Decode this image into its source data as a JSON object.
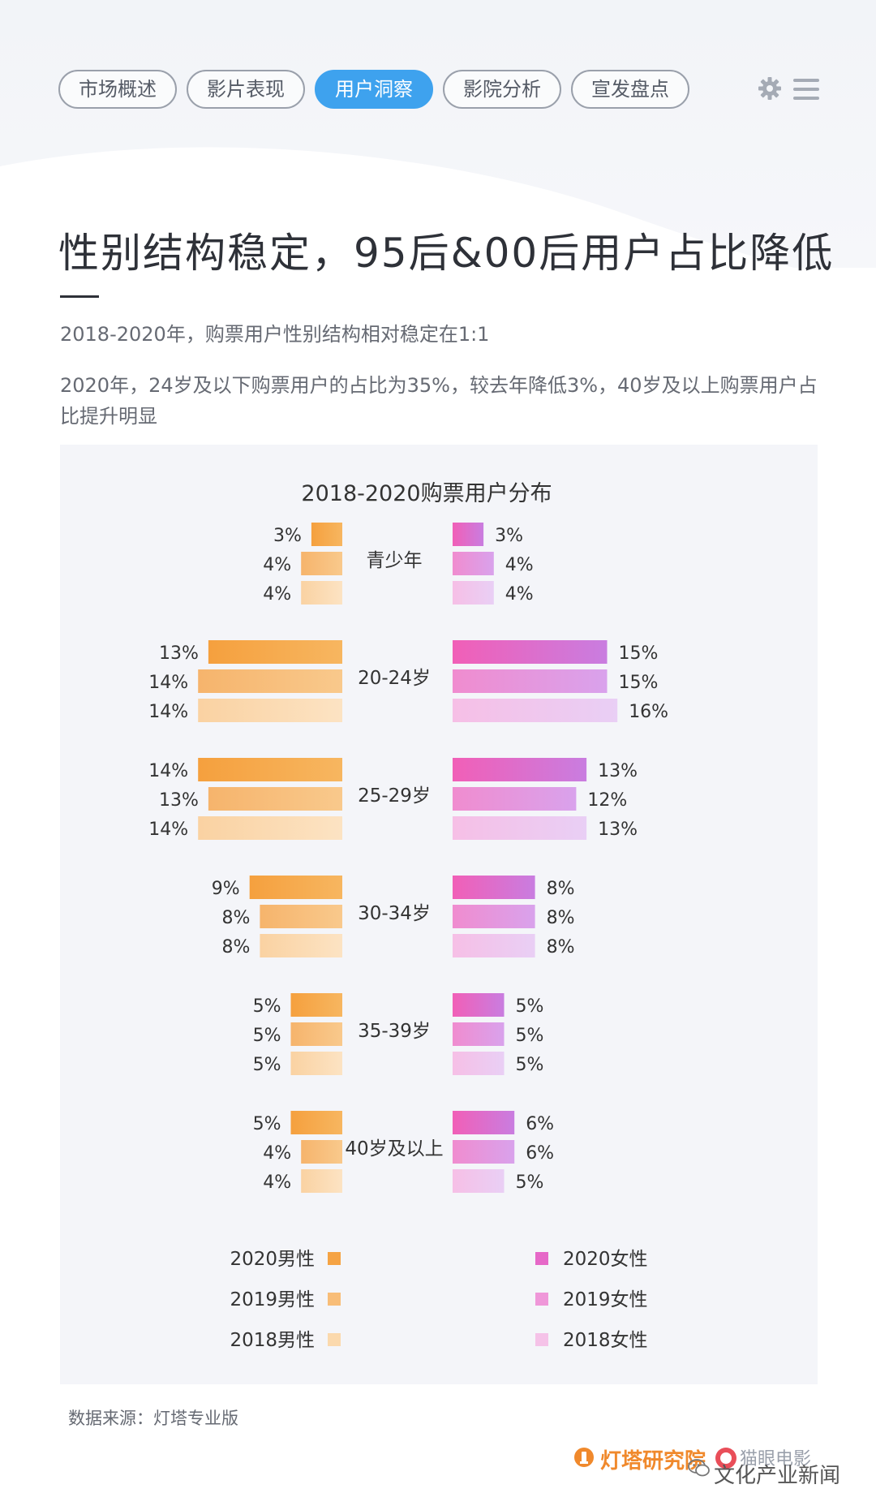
{
  "nav": {
    "tabs": [
      {
        "label": "市场概述",
        "active": false
      },
      {
        "label": "影片表现",
        "active": false
      },
      {
        "label": "用户洞察",
        "active": true
      },
      {
        "label": "影院分析",
        "active": false
      },
      {
        "label": "宣发盘点",
        "active": false
      }
    ],
    "icons": [
      "gear-icon",
      "menu-icon"
    ]
  },
  "headline": "性别结构稳定，95后&00后用户占比降低",
  "paragraphs": [
    "2018-2020年，购票用户性别结构相对稳定在1:1",
    "2020年，24岁及以下购票用户的占比为35%，较去年降低3%，40岁及以上购票用户占比提升明显"
  ],
  "chart_data": {
    "type": "bar",
    "title": "2018-2020购票用户分布",
    "orientation": "horizontal-butterfly",
    "categories": [
      "青少年",
      "20-24岁",
      "25-29岁",
      "30-34岁",
      "35-39岁",
      "40岁及以上"
    ],
    "unit": "%",
    "series": [
      {
        "name": "2020男性",
        "side": "left",
        "color": "#f5a344",
        "values": [
          3,
          13,
          14,
          9,
          5,
          5
        ]
      },
      {
        "name": "2019男性",
        "side": "left",
        "color": "#f8bd78",
        "values": [
          4,
          14,
          13,
          8,
          5,
          4
        ]
      },
      {
        "name": "2018男性",
        "side": "left",
        "color": "#fbd9ad",
        "values": [
          4,
          14,
          14,
          8,
          5,
          4
        ]
      },
      {
        "name": "2020女性",
        "side": "right",
        "color": "#e668c8",
        "values": [
          3,
          15,
          13,
          8,
          5,
          6
        ]
      },
      {
        "name": "2019女性",
        "side": "right",
        "color": "#ef97d9",
        "values": [
          4,
          15,
          12,
          8,
          5,
          6
        ]
      },
      {
        "name": "2018女性",
        "side": "right",
        "color": "#f5c2e8",
        "values": [
          4,
          16,
          13,
          8,
          5,
          5
        ]
      }
    ]
  },
  "footer": {
    "source": "数据来源：灯塔专业版",
    "brand": "灯塔研究院",
    "app": "猫眼电影",
    "wechat": "文化产业新闻"
  }
}
